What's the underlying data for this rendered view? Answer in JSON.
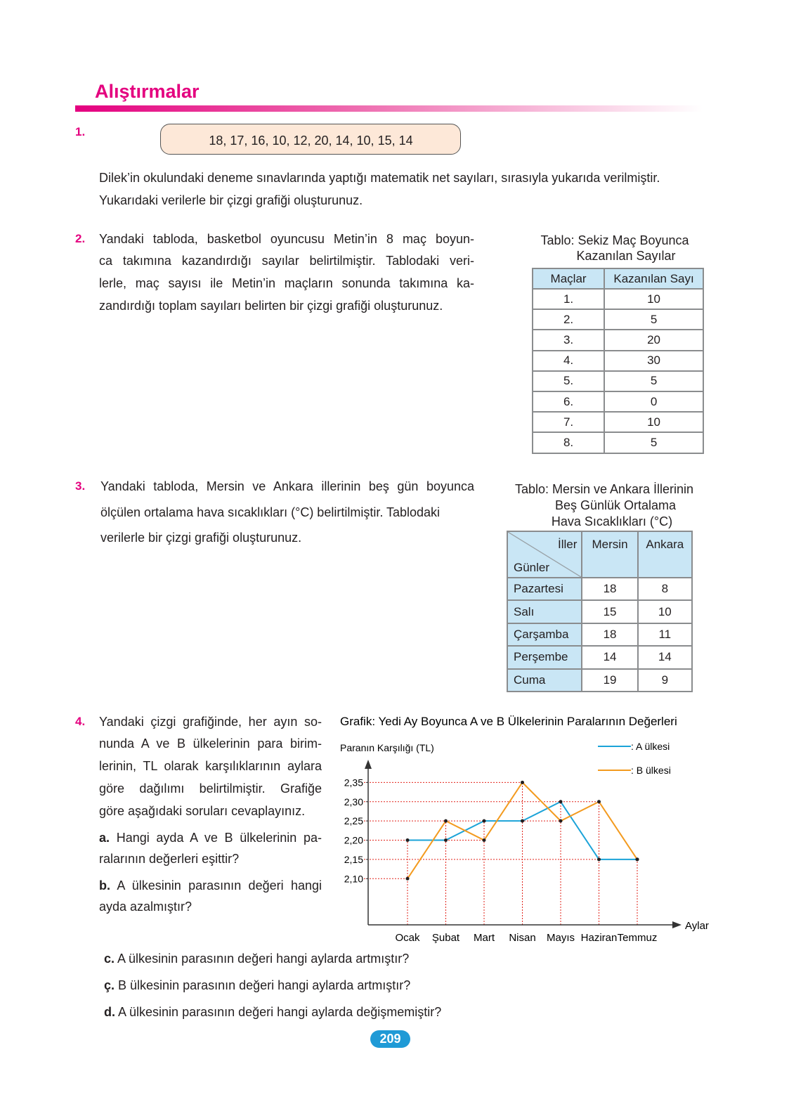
{
  "header": {
    "title": "Alıştırmalar"
  },
  "exercises": [
    {
      "number": "1.",
      "data_box": "18, 17, 16, 10, 12, 20, 14, 10, 15, 14",
      "text_lines": [
        "Dilek’in okulundaki deneme sınavlarında yaptığı matematik net sayıları, sırasıyla yukarıda verilmiştir.",
        "Yukarıdaki verilerle bir çizgi grafiği oluşturunuz."
      ]
    },
    {
      "number": "2.",
      "text_lines": [
        "Yandaki tabloda, basketbol oyuncusu Metin’in 8 maç boyun-",
        "ca takımına kazandırdığı sayılar belirtilmiştir. Tablodaki veri-",
        "lerle, maç sayısı ile Metin’in maçların sonunda takımına ka-",
        "zandırdığı toplam sayıları belirten bir çizgi grafiği oluşturunuz."
      ],
      "table": {
        "title_lines": [
          "Tablo: Sekiz Maç Boyunca",
          "Kazanılan Sayılar"
        ],
        "headers": [
          "Maçlar",
          "Kazanılan Sayı"
        ],
        "rows": [
          [
            "1.",
            10
          ],
          [
            "2.",
            5
          ],
          [
            "3.",
            20
          ],
          [
            "4.",
            30
          ],
          [
            "5.",
            5
          ],
          [
            "6.",
            0
          ],
          [
            "7.",
            10
          ],
          [
            "8.",
            5
          ]
        ]
      }
    },
    {
      "number": "3.",
      "text_lines": [
        "Yandaki tabloda, Mersin ve Ankara illerinin beş gün boyunca",
        "ölçülen ortalama hava sıcaklıkları (°C) belirtilmiştir. Tablodaki",
        "verilerle bir çizgi grafiği oluşturunuz."
      ],
      "table": {
        "title_lines": [
          "Tablo: Mersin ve Ankara İllerinin",
          "Beş Günlük Ortalama",
          "Hava Sıcaklıkları (°C)"
        ],
        "corner": {
          "top": "İller",
          "bottom": "Günler"
        },
        "headers": [
          "Mersin",
          "Ankara"
        ],
        "rows": [
          [
            "Pazartesi",
            18,
            8
          ],
          [
            "Salı",
            15,
            10
          ],
          [
            "Çarşamba",
            18,
            11
          ],
          [
            "Perşembe",
            14,
            14
          ],
          [
            "Cuma",
            19,
            9
          ]
        ]
      }
    },
    {
      "number": "4.",
      "text_lines": [
        "Yandaki çizgi grafiğinde, her ayın so-",
        "nunda A ve B ülkelerinin para birim-",
        "lerinin, TL olarak karşılıklarının aylara",
        "göre dağılımı belirtilmiştir. Grafiğe",
        "göre aşağıdaki soruları cevaplayınız."
      ],
      "questions": [
        {
          "label": "a.",
          "lines": [
            "Hangi ayda A ve B ülkelerinin pa-",
            "ralarının değerleri eşittir?"
          ]
        },
        {
          "label": "b.",
          "lines": [
            "A ülkesinin parasının değeri hangi",
            "ayda azalmıştır?"
          ]
        },
        {
          "label": "c.",
          "lines": [
            "A ülkesinin parasının değeri hangi aylarda artmıştır?"
          ]
        },
        {
          "label": "ç.",
          "lines": [
            "B ülkesinin parasının değeri hangi aylarda artmıştır?"
          ]
        },
        {
          "label": "d.",
          "lines": [
            "A ülkesinin parasının değeri hangi aylarda değişmemiştir?"
          ]
        }
      ]
    }
  ],
  "chart_data": {
    "type": "line",
    "title": "Grafik: Yedi Ay Boyunca  A ve B Ülkelerinin Paralarının Değerleri",
    "y_label": "Paranın Karşılığı (TL)",
    "x_label": "Aylar",
    "categories": [
      "Ocak",
      "Şubat",
      "Mart",
      "Nisan",
      "Mayıs",
      "Haziran",
      "Temmuz"
    ],
    "series": [
      {
        "name": ": A ülkesi",
        "color": "#1ba3d8",
        "values": [
          2.2,
          2.2,
          2.25,
          2.25,
          2.3,
          2.15,
          2.15
        ]
      },
      {
        "name": ": B ülkesi",
        "color": "#f39a1e",
        "values": [
          2.1,
          2.25,
          2.2,
          2.35,
          2.25,
          2.3,
          2.15
        ]
      }
    ],
    "ylim": [
      1.98,
      2.4
    ],
    "yticks": [
      {
        "value": 2.1,
        "label": "2,10"
      },
      {
        "value": 2.15,
        "label": "2,15"
      },
      {
        "value": 2.2,
        "label": "2,20"
      },
      {
        "value": 2.25,
        "label": "2,25"
      },
      {
        "value": 2.3,
        "label": "2,30"
      },
      {
        "value": 2.35,
        "label": "2,35"
      }
    ],
    "grid": true,
    "grid_color": "#e2231a"
  },
  "page_number": "209"
}
